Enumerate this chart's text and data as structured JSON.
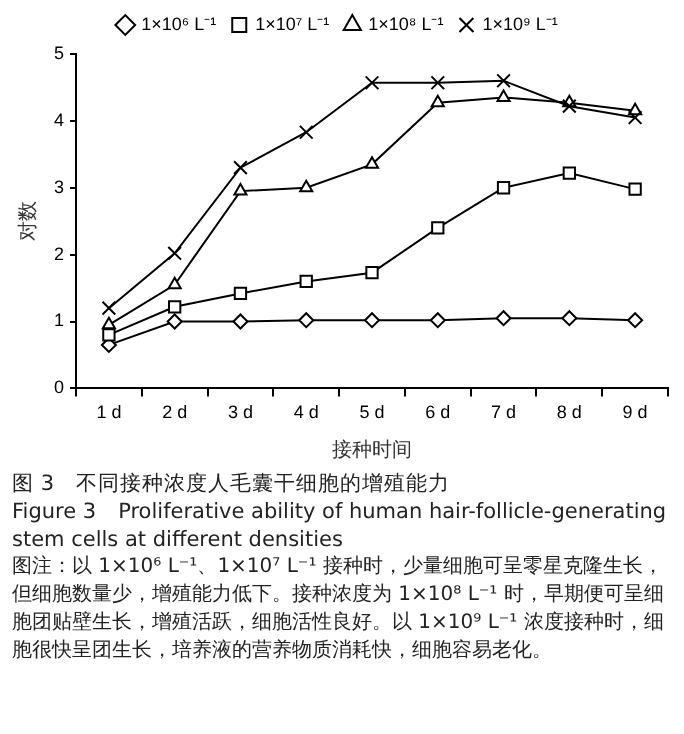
{
  "chart_data": {
    "type": "line",
    "title": "图 3　不同接种浓度人毛囊干细胞的增殖能力",
    "subtitle": "Figure 3　Proliferative ability of human hair-follicle-generating stem cells at different densities",
    "annotations": [
      "图注：以 1×10⁶ L⁻¹、1×10⁷ L⁻¹ 接种时，少量细胞可呈零星克隆生长，但细胞数量少，增殖能力低下。接种浓度为 1×10⁸ L⁻¹ 时，早期便可呈细胞团贴壁生长，增殖活跃，细胞活性良好。以 1×10⁹ L⁻¹ 浓度接种时，细胞很快呈团生长，培养液的营养物质消耗快，细胞容易老化。"
    ],
    "xlabel": "接种时间",
    "ylabel": "对数",
    "categories": [
      "1 d",
      "2 d",
      "3 d",
      "4 d",
      "5 d",
      "6 d",
      "7 d",
      "8 d",
      "9 d"
    ],
    "series": [
      {
        "name": "1×10⁶ L⁻¹",
        "color": "#000000",
        "marker": "diamond",
        "values": [
          0.65,
          1.0,
          1.0,
          1.02,
          1.02,
          1.02,
          1.05,
          1.05,
          1.02
        ]
      },
      {
        "name": "1×10⁷ L⁻¹",
        "color": "#000000",
        "marker": "square",
        "values": [
          0.8,
          1.22,
          1.42,
          1.6,
          1.73,
          2.4,
          3.0,
          3.22,
          2.98
        ]
      },
      {
        "name": "1×10⁸ L⁻¹",
        "color": "#000000",
        "marker": "triangle",
        "values": [
          0.95,
          1.55,
          2.95,
          3.0,
          3.35,
          4.27,
          4.35,
          4.27,
          4.15
        ]
      },
      {
        "name": "1×10⁹ L⁻¹",
        "color": "#000000",
        "marker": "cross",
        "values": [
          1.2,
          2.02,
          3.3,
          3.83,
          4.57,
          4.57,
          4.6,
          4.22,
          4.05
        ]
      }
    ],
    "ylim": [
      0,
      5
    ],
    "yticks": [
      0,
      1,
      2,
      3,
      4,
      5
    ],
    "grid": false,
    "legend": "top"
  }
}
